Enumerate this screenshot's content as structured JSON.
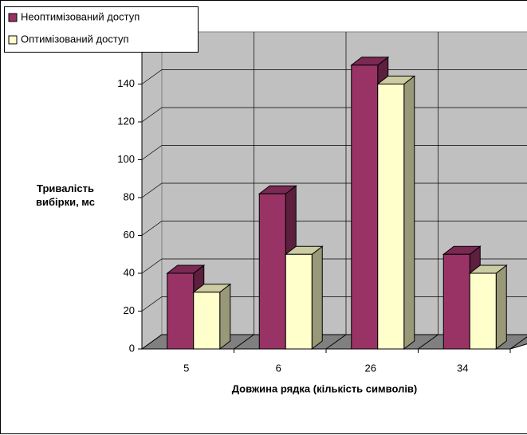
{
  "chart_data": {
    "type": "bar3d",
    "categories": [
      "5",
      "6",
      "26",
      "34"
    ],
    "series": [
      {
        "name": "Неоптимізований доступ",
        "color": "#993366",
        "values": [
          40,
          82,
          150,
          50
        ]
      },
      {
        "name": "Оптимізований доступ",
        "color": "#ffffcc",
        "values": [
          30,
          50,
          140,
          40
        ]
      }
    ],
    "ylim": [
      0,
      160
    ],
    "yticks": [
      0,
      20,
      40,
      60,
      80,
      100,
      120,
      140
    ],
    "x_label": "Довжина рядка (кількість символів)",
    "y_label": "Тривалість вибірки, мс",
    "grid": true,
    "legend": "top-left"
  }
}
